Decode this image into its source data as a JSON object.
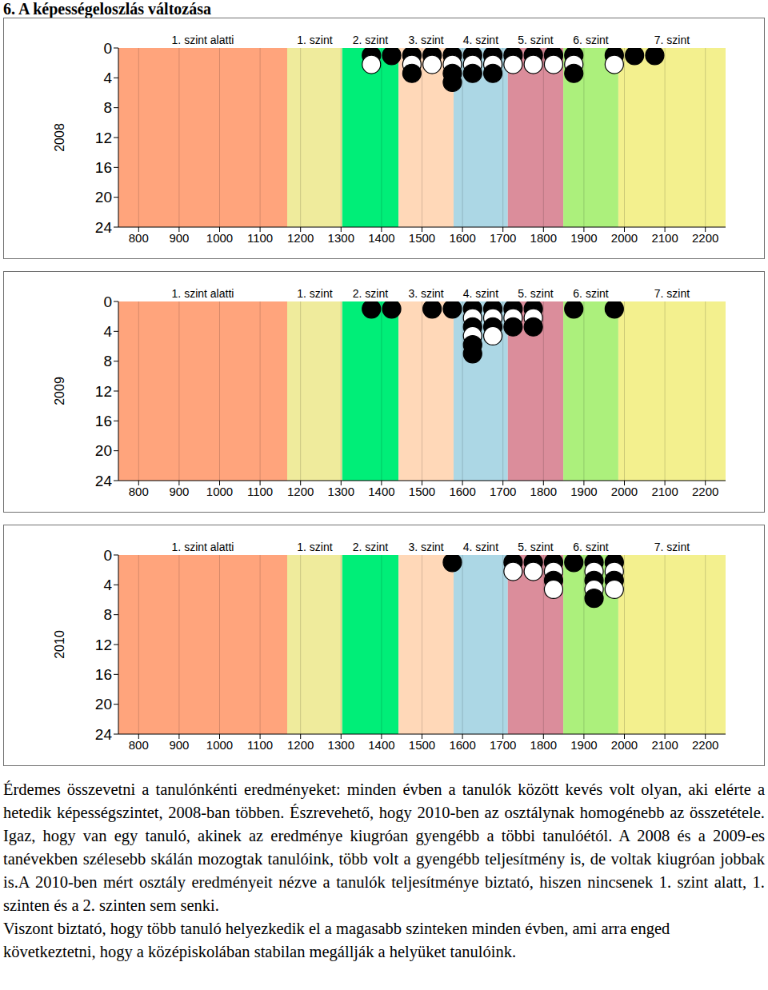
{
  "title": "6. A képességeloszlás változása",
  "chart_data": [
    {
      "type": "scatter",
      "ylabel": "2008",
      "xlim": [
        750,
        2250
      ],
      "xticks": [
        800,
        900,
        1000,
        1100,
        1200,
        1300,
        1400,
        1500,
        1600,
        1700,
        1800,
        1900,
        2000,
        2100,
        2200
      ],
      "ylim": [
        24,
        0
      ],
      "yticks": [
        0,
        4,
        8,
        12,
        16,
        20,
        24
      ],
      "grid": true,
      "levels": [
        {
          "label": "1. szint alatti",
          "from": 750,
          "to": 1167,
          "color": "#ffa47c"
        },
        {
          "label": "1. szint",
          "from": 1167,
          "to": 1303,
          "color": "#efeb9c"
        },
        {
          "label": "2. szint",
          "from": 1303,
          "to": 1442,
          "color": "#00ee78"
        },
        {
          "label": "3. szint",
          "from": 1442,
          "to": 1578,
          "color": "#ffd8b8"
        },
        {
          "label": "4. szint",
          "from": 1578,
          "to": 1712,
          "color": "#acd7e5"
        },
        {
          "label": "5. szint",
          "from": 1712,
          "to": 1849,
          "color": "#db8d9b"
        },
        {
          "label": "6. szint",
          "from": 1849,
          "to": 1985,
          "color": "#acf07c"
        },
        {
          "label": "7. szint",
          "from": 1985,
          "to": 2250,
          "color": "#f3f08e"
        }
      ],
      "x": [
        1375,
        1375,
        1425,
        1475,
        1475,
        1475,
        1525,
        1525,
        1575,
        1575,
        1575,
        1575,
        1625,
        1625,
        1625,
        1675,
        1675,
        1675,
        1725,
        1725,
        1775,
        1775,
        1825,
        1825,
        1875,
        1875,
        1875,
        1975,
        1975,
        2025,
        2075
      ],
      "values": [
        1,
        2.2,
        1,
        1,
        2.2,
        3.4,
        1,
        2.2,
        1,
        2.2,
        3.4,
        4.6,
        1,
        2.2,
        3.4,
        1,
        2.2,
        3.4,
        1,
        2.2,
        1,
        2.2,
        1,
        2.2,
        1,
        2.2,
        3.4,
        1,
        2.2,
        1,
        1
      ],
      "colors": [
        "#000000",
        "#ffffff",
        "#000000",
        "#000000",
        "#ffffff",
        "#000000",
        "#000000",
        "#ffffff",
        "#000000",
        "#ffffff",
        "#000000",
        "#000000",
        "#000000",
        "#ffffff",
        "#000000",
        "#000000",
        "#ffffff",
        "#000000",
        "#000000",
        "#ffffff",
        "#000000",
        "#ffffff",
        "#000000",
        "#ffffff",
        "#000000",
        "#ffffff",
        "#000000",
        "#000000",
        "#ffffff",
        "#000000",
        "#000000"
      ]
    },
    {
      "type": "scatter",
      "ylabel": "2009",
      "xlim": [
        750,
        2250
      ],
      "xticks": [
        800,
        900,
        1000,
        1100,
        1200,
        1300,
        1400,
        1500,
        1600,
        1700,
        1800,
        1900,
        2000,
        2100,
        2200
      ],
      "ylim": [
        24,
        0
      ],
      "yticks": [
        0,
        4,
        8,
        12,
        16,
        20,
        24
      ],
      "grid": true,
      "levels": [
        {
          "label": "1. szint alatti",
          "from": 750,
          "to": 1167,
          "color": "#ffa47c"
        },
        {
          "label": "1. szint",
          "from": 1167,
          "to": 1303,
          "color": "#efeb9c"
        },
        {
          "label": "2. szint",
          "from": 1303,
          "to": 1442,
          "color": "#00ee78"
        },
        {
          "label": "3. szint",
          "from": 1442,
          "to": 1578,
          "color": "#ffd8b8"
        },
        {
          "label": "4. szint",
          "from": 1578,
          "to": 1712,
          "color": "#acd7e5"
        },
        {
          "label": "5. szint",
          "from": 1712,
          "to": 1849,
          "color": "#db8d9b"
        },
        {
          "label": "6. szint",
          "from": 1849,
          "to": 1985,
          "color": "#acf07c"
        },
        {
          "label": "7. szint",
          "from": 1985,
          "to": 2250,
          "color": "#f3f08e"
        }
      ],
      "x": [
        1375,
        1425,
        1525,
        1575,
        1625,
        1625,
        1625,
        1625,
        1625,
        1625,
        1675,
        1675,
        1675,
        1675,
        1725,
        1725,
        1725,
        1775,
        1775,
        1775,
        1875,
        1975
      ],
      "values": [
        1,
        1,
        1,
        1,
        1,
        2.2,
        3.4,
        4.6,
        5.8,
        7,
        1,
        2.2,
        3.4,
        4.6,
        1,
        2.2,
        3.4,
        1,
        2.2,
        3.4,
        1,
        1
      ],
      "colors": [
        "#000000",
        "#000000",
        "#000000",
        "#000000",
        "#000000",
        "#ffffff",
        "#000000",
        "#ffffff",
        "#000000",
        "#000000",
        "#000000",
        "#ffffff",
        "#000000",
        "#ffffff",
        "#000000",
        "#ffffff",
        "#000000",
        "#000000",
        "#ffffff",
        "#000000",
        "#000000",
        "#000000"
      ]
    },
    {
      "type": "scatter",
      "ylabel": "2010",
      "xlim": [
        750,
        2250
      ],
      "xticks": [
        800,
        900,
        1000,
        1100,
        1200,
        1300,
        1400,
        1500,
        1600,
        1700,
        1800,
        1900,
        2000,
        2100,
        2200
      ],
      "ylim": [
        24,
        0
      ],
      "yticks": [
        0,
        4,
        8,
        12,
        16,
        20,
        24
      ],
      "grid": true,
      "levels": [
        {
          "label": "1. szint alatti",
          "from": 750,
          "to": 1167,
          "color": "#ffa47c"
        },
        {
          "label": "1. szint",
          "from": 1167,
          "to": 1303,
          "color": "#efeb9c"
        },
        {
          "label": "2. szint",
          "from": 1303,
          "to": 1442,
          "color": "#00ee78"
        },
        {
          "label": "3. szint",
          "from": 1442,
          "to": 1578,
          "color": "#ffd8b8"
        },
        {
          "label": "4. szint",
          "from": 1578,
          "to": 1712,
          "color": "#acd7e5"
        },
        {
          "label": "5. szint",
          "from": 1712,
          "to": 1849,
          "color": "#db8d9b"
        },
        {
          "label": "6. szint",
          "from": 1849,
          "to": 1985,
          "color": "#acf07c"
        },
        {
          "label": "7. szint",
          "from": 1985,
          "to": 2250,
          "color": "#f3f08e"
        }
      ],
      "x": [
        1575,
        1725,
        1725,
        1775,
        1775,
        1825,
        1825,
        1825,
        1825,
        1875,
        1925,
        1925,
        1925,
        1925,
        1925,
        1975,
        1975,
        1975,
        1975
      ],
      "values": [
        1,
        1,
        2.2,
        1,
        2.2,
        1,
        2.2,
        3.4,
        4.6,
        1,
        1,
        2.2,
        3.4,
        4.6,
        5.8,
        1,
        2.2,
        3.4,
        4.6
      ],
      "colors": [
        "#000000",
        "#000000",
        "#ffffff",
        "#000000",
        "#ffffff",
        "#000000",
        "#ffffff",
        "#000000",
        "#ffffff",
        "#000000",
        "#000000",
        "#ffffff",
        "#000000",
        "#ffffff",
        "#000000",
        "#000000",
        "#ffffff",
        "#000000",
        "#ffffff"
      ]
    }
  ],
  "paragraphs": [
    "Érdemes összevetni a tanulónkénti eredményeket: minden évben a tanulók között kevés volt olyan, aki elérte a hetedik képességszintet, 2008-ban többen. Észrevehető, hogy 2010-ben az osztálynak homogénebb az összetétele. Igaz, hogy van egy tanuló, akinek az eredménye kiugróan gyengébb a többi tanulóétól. A 2008 és a 2009-es tanévekben szélesebb skálán mozogtak tanulóink, több volt a gyengébb teljesítmény is, de voltak kiugróan jobbak is.A 2010-ben mért osztály eredményeit nézve a tanulók teljesítménye biztató, hiszen nincsenek 1. szint alatt, 1. szinten és a 2. szinten sem senki.",
    "Viszont biztató, hogy több tanuló helyezkedik el a magasabb szinteken minden évben, ami arra enged következtetni, hogy a középiskolában stabilan megállják a helyüket tanulóink."
  ]
}
